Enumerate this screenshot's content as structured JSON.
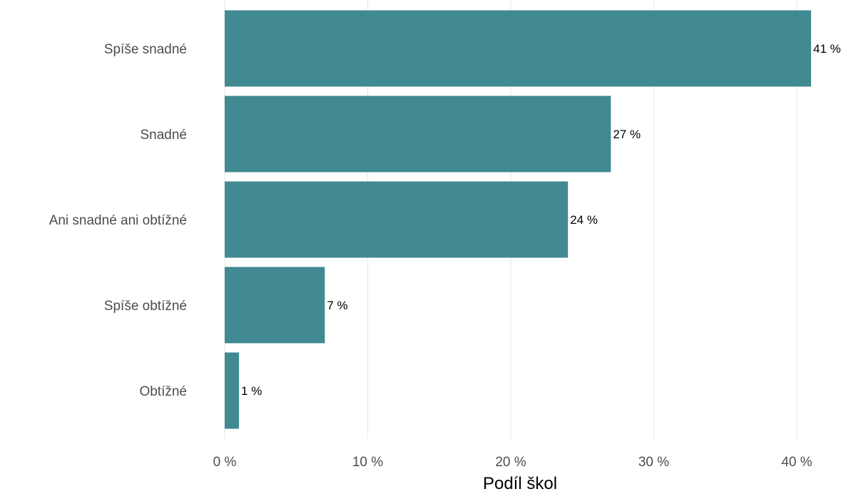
{
  "chart_data": {
    "type": "bar",
    "orientation": "horizontal",
    "categories": [
      "Spíše snadné",
      "Snadné",
      "Ani snadné ani obtížné",
      "Spíše obtížné",
      "Obtížné"
    ],
    "values": [
      41,
      27,
      24,
      7,
      1
    ],
    "data_labels": [
      "41 %",
      "27 %",
      "24 %",
      "7 %",
      "1 %"
    ],
    "x_ticks": [
      0,
      10,
      20,
      30,
      40
    ],
    "x_tick_labels": [
      "0 %",
      "10 %",
      "20 %",
      "30 %",
      "40 %"
    ],
    "xlabel": "Podíl škol",
    "ylabel": "",
    "xlim": [
      0,
      42.5
    ],
    "grid": true,
    "legend": false,
    "colors": {
      "bar": "#418a92",
      "grid": "#ebebeb"
    }
  }
}
